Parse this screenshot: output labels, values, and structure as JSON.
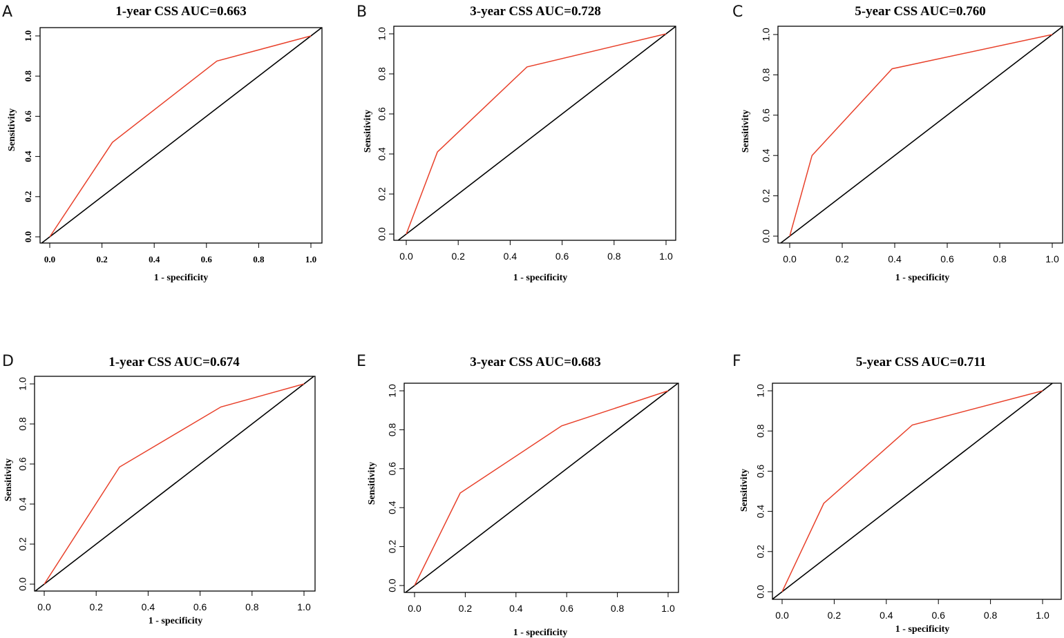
{
  "colors": {
    "roc": "#e8402a",
    "diagonal": "#000000",
    "frame": "#000000"
  },
  "chart_data": [
    {
      "panel": "A",
      "type": "line",
      "title": "1-year CSS  AUC=0.663",
      "xlabel": "1 - specificity",
      "ylabel": "Sensitivity",
      "xlim": [
        0,
        1
      ],
      "ylim": [
        0,
        1
      ],
      "xticks": [
        "0.0",
        "0.2",
        "0.4",
        "0.6",
        "0.8",
        "1.0"
      ],
      "yticks": [
        "0.0",
        "0.2",
        "0.4",
        "0.6",
        "0.8",
        "1.0"
      ],
      "series": [
        {
          "name": "ROC",
          "x": [
            0,
            0.24,
            0.64,
            1.0
          ],
          "y": [
            0,
            0.47,
            0.875,
            1.0
          ]
        },
        {
          "name": "Reference",
          "x": [
            0,
            1
          ],
          "y": [
            0,
            1
          ]
        }
      ]
    },
    {
      "panel": "B",
      "type": "line",
      "title": "3-year CSS  AUC=0.728",
      "xlabel": "1 - specificity",
      "ylabel": "Sensitivity",
      "xlim": [
        0,
        1
      ],
      "ylim": [
        0,
        1
      ],
      "xticks": [
        "0.0",
        "0.2",
        "0.4",
        "0.6",
        "0.8",
        "1.0"
      ],
      "yticks": [
        "0.0",
        "0.2",
        "0.4",
        "0.6",
        "0.8",
        "1.0"
      ],
      "series": [
        {
          "name": "ROC",
          "x": [
            0,
            0.12,
            0.465,
            1.0
          ],
          "y": [
            0,
            0.41,
            0.835,
            1.0
          ]
        },
        {
          "name": "Reference",
          "x": [
            0,
            1
          ],
          "y": [
            0,
            1
          ]
        }
      ]
    },
    {
      "panel": "C",
      "type": "line",
      "title": "5-year CSS  AUC=0.760",
      "xlabel": "1 - specificity",
      "ylabel": "Sensitivity",
      "xlim": [
        0,
        1
      ],
      "ylim": [
        0,
        1
      ],
      "xticks": [
        "0.0",
        "0.2",
        "0.4",
        "0.6",
        "0.8",
        "1.0"
      ],
      "yticks": [
        "0.0",
        "0.2",
        "0.4",
        "0.6",
        "0.8",
        "1.0"
      ],
      "series": [
        {
          "name": "ROC",
          "x": [
            0,
            0.085,
            0.39,
            1.0
          ],
          "y": [
            0,
            0.4,
            0.83,
            1.0
          ]
        },
        {
          "name": "Reference",
          "x": [
            0,
            1
          ],
          "y": [
            0,
            1
          ]
        }
      ]
    },
    {
      "panel": "D",
      "type": "line",
      "title": "1-year CSS  AUC=0.674",
      "xlabel": "1 - specificity",
      "ylabel": "Sensitivity",
      "xlim": [
        0,
        1
      ],
      "ylim": [
        0,
        1
      ],
      "xticks": [
        "0.0",
        "0.2",
        "0.4",
        "0.6",
        "0.8",
        "1.0"
      ],
      "yticks": [
        "0.0",
        "0.2",
        "0.4",
        "0.6",
        "0.8",
        "1.0"
      ],
      "series": [
        {
          "name": "ROC",
          "x": [
            0,
            0.29,
            0.68,
            1.0
          ],
          "y": [
            0,
            0.585,
            0.885,
            1.0
          ]
        },
        {
          "name": "Reference",
          "x": [
            0,
            1
          ],
          "y": [
            0,
            1
          ]
        }
      ]
    },
    {
      "panel": "E",
      "type": "line",
      "title": "3-year CSS  AUC=0.683",
      "xlabel": "1 - specificity",
      "ylabel": "Sensitivity",
      "xlim": [
        0,
        1
      ],
      "ylim": [
        0,
        1
      ],
      "xticks": [
        "0.0",
        "0.2",
        "0.4",
        "0.6",
        "0.8",
        "1.0"
      ],
      "yticks": [
        "0.0",
        "0.2",
        "0.4",
        "0.6",
        "0.8",
        "1.0"
      ],
      "series": [
        {
          "name": "ROC",
          "x": [
            0,
            0.18,
            0.58,
            1.0
          ],
          "y": [
            0,
            0.475,
            0.82,
            1.0
          ]
        },
        {
          "name": "Reference",
          "x": [
            0,
            1
          ],
          "y": [
            0,
            1
          ]
        }
      ]
    },
    {
      "panel": "F",
      "type": "line",
      "title": "5-year CSS  AUC=0.711",
      "xlabel": "1 - specificity",
      "ylabel": "Sensitivity",
      "xlim": [
        0,
        1
      ],
      "ylim": [
        0,
        1
      ],
      "xticks": [
        "0.0",
        "0.2",
        "0.4",
        "0.6",
        "0.8",
        "1.0"
      ],
      "yticks": [
        "0.0",
        "0.2",
        "0.4",
        "0.6",
        "0.8",
        "1.0"
      ],
      "series": [
        {
          "name": "ROC",
          "x": [
            0,
            0.16,
            0.5,
            1.0
          ],
          "y": [
            0,
            0.44,
            0.83,
            1.0
          ]
        },
        {
          "name": "Reference",
          "x": [
            0,
            1
          ],
          "y": [
            0,
            1
          ]
        }
      ]
    }
  ]
}
